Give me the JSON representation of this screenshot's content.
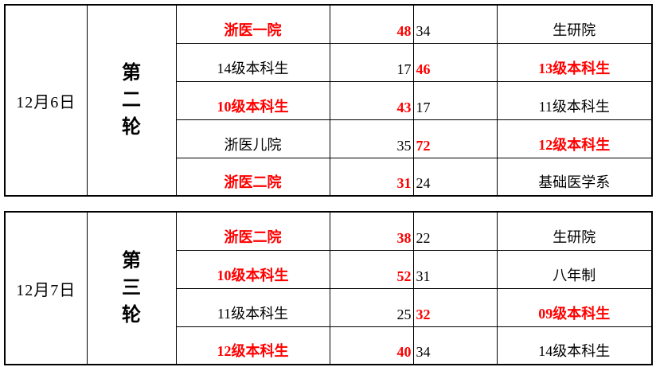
{
  "colors": {
    "win_highlight": "#ff0000",
    "text": "#000000",
    "border": "#000000",
    "background": "#ffffff"
  },
  "tables": [
    {
      "date": "12月6日",
      "round": "第二轮",
      "matches": [
        {
          "team_left": "浙医一院",
          "score_left": "48",
          "score_right": "34",
          "team_right": "生研院",
          "left_win": true
        },
        {
          "team_left": "14级本科生",
          "score_left": "17",
          "score_right": "46",
          "team_right": "13级本科生",
          "left_win": false
        },
        {
          "team_left": "10级本科生",
          "score_left": "43",
          "score_right": "17",
          "team_right": "11级本科生",
          "left_win": true
        },
        {
          "team_left": "浙医儿院",
          "score_left": "35",
          "score_right": "72",
          "team_right": "12级本科生",
          "left_win": false
        },
        {
          "team_left": "浙医二院",
          "score_left": "31",
          "score_right": "24",
          "team_right": "基础医学系",
          "left_win": true
        }
      ]
    },
    {
      "date": "12月7日",
      "round": "第三轮",
      "matches": [
        {
          "team_left": "浙医二院",
          "score_left": "38",
          "score_right": "22",
          "team_right": "生研院",
          "left_win": true
        },
        {
          "team_left": "10级本科生",
          "score_left": "52",
          "score_right": "31",
          "team_right": "八年制",
          "left_win": true
        },
        {
          "team_left": "11级本科生",
          "score_left": "25",
          "score_right": "32",
          "team_right": "09级本科生",
          "left_win": false
        },
        {
          "team_left": "12级本科生",
          "score_left": "40",
          "score_right": "34",
          "team_right": "14级本科生",
          "left_win": true
        }
      ]
    }
  ]
}
